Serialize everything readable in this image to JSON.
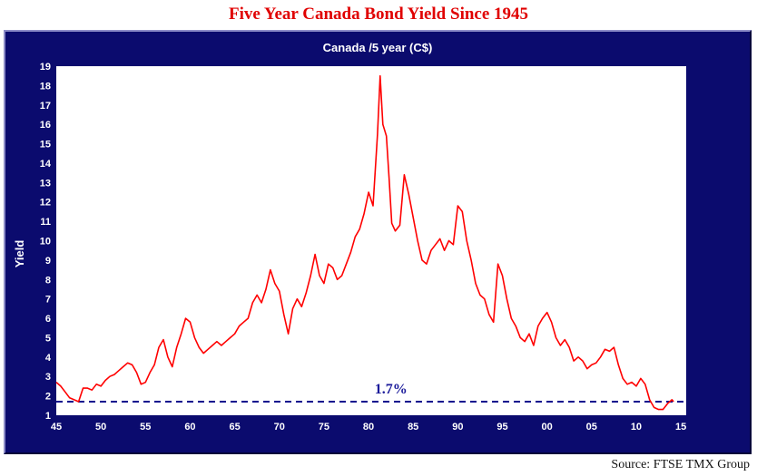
{
  "page": {
    "title": "Five Year Canada Bond Yield Since 1945",
    "source": "Source:  FTSE TMX Group"
  },
  "colors": {
    "frame_bg": "#0b0b6e",
    "plot_bg": "#ffffff",
    "series_line": "#ff0000",
    "reference_line": "#0b0b8e",
    "title_red": "#e00000"
  },
  "chart_data": {
    "type": "line",
    "title": "Canada /5 year (C$)",
    "xlabel": "",
    "ylabel": "Yield",
    "xlim": [
      1945,
      2015.6
    ],
    "ylim": [
      1,
      19
    ],
    "grid": false,
    "xticks": [
      1945,
      1950,
      1955,
      1960,
      1965,
      1970,
      1975,
      1980,
      1985,
      1990,
      1995,
      2000,
      2005,
      2010,
      2015
    ],
    "xtick_labels": [
      "45",
      "50",
      "55",
      "60",
      "65",
      "70",
      "75",
      "80",
      "85",
      "90",
      "95",
      "00",
      "05",
      "10",
      "15"
    ],
    "yticks": [
      1,
      2,
      3,
      4,
      5,
      6,
      7,
      8,
      9,
      10,
      11,
      12,
      13,
      14,
      15,
      16,
      17,
      18,
      19
    ],
    "series": [
      {
        "x": [
          1945.0,
          1945.5,
          1946.0,
          1946.5,
          1947.0,
          1947.5,
          1948.0,
          1948.5,
          1949.0,
          1949.5,
          1950.0,
          1950.5,
          1951.0,
          1951.5,
          1952.0,
          1952.5,
          1953.0,
          1953.5,
          1954.0,
          1954.5,
          1955.0,
          1955.5,
          1956.0,
          1956.5,
          1957.0,
          1957.5,
          1958.0,
          1958.5,
          1959.0,
          1959.5,
          1960.0,
          1960.5,
          1961.0,
          1961.5,
          1962.0,
          1962.5,
          1963.0,
          1963.5,
          1964.0,
          1964.5,
          1965.0,
          1965.5,
          1966.0,
          1966.5,
          1967.0,
          1967.5,
          1968.0,
          1968.5,
          1969.0,
          1969.5,
          1970.0,
          1970.5,
          1971.0,
          1971.5,
          1972.0,
          1972.5,
          1973.0,
          1973.5,
          1974.0,
          1974.5,
          1975.0,
          1975.5,
          1976.0,
          1976.5,
          1977.0,
          1977.5,
          1978.0,
          1978.5,
          1979.0,
          1979.5,
          1980.0,
          1980.5,
          1981.0,
          1981.3,
          1981.6,
          1982.0,
          1982.3,
          1982.6,
          1983.0,
          1983.5,
          1984.0,
          1984.5,
          1985.0,
          1985.5,
          1986.0,
          1986.5,
          1987.0,
          1987.5,
          1988.0,
          1988.5,
          1989.0,
          1989.5,
          1990.0,
          1990.5,
          1991.0,
          1991.5,
          1992.0,
          1992.5,
          1993.0,
          1993.5,
          1994.0,
          1994.5,
          1995.0,
          1995.5,
          1996.0,
          1996.5,
          1997.0,
          1997.5,
          1998.0,
          1998.5,
          1999.0,
          1999.5,
          2000.0,
          2000.5,
          2001.0,
          2001.5,
          2002.0,
          2002.5,
          2003.0,
          2003.5,
          2004.0,
          2004.5,
          2005.0,
          2005.5,
          2006.0,
          2006.5,
          2007.0,
          2007.5,
          2008.0,
          2008.5,
          2009.0,
          2009.5,
          2010.0,
          2010.5,
          2011.0,
          2011.5,
          2012.0,
          2012.5,
          2013.0,
          2013.5,
          2014.0,
          2014.2
        ],
        "values": [
          2.7,
          2.5,
          2.2,
          1.9,
          1.8,
          1.7,
          2.4,
          2.4,
          2.3,
          2.6,
          2.5,
          2.8,
          3.0,
          3.1,
          3.3,
          3.5,
          3.7,
          3.6,
          3.2,
          2.6,
          2.7,
          3.2,
          3.6,
          4.5,
          4.9,
          4.0,
          3.5,
          4.5,
          5.2,
          6.0,
          5.8,
          5.0,
          4.5,
          4.2,
          4.4,
          4.6,
          4.8,
          4.6,
          4.8,
          5.0,
          5.2,
          5.6,
          5.8,
          6.0,
          6.8,
          7.2,
          6.8,
          7.5,
          8.5,
          7.8,
          7.4,
          6.2,
          5.2,
          6.5,
          7.0,
          6.6,
          7.3,
          8.2,
          9.3,
          8.2,
          7.8,
          8.8,
          8.6,
          8.0,
          8.2,
          8.8,
          9.4,
          10.2,
          10.6,
          11.4,
          12.5,
          11.8,
          15.5,
          18.5,
          16.0,
          15.4,
          13.2,
          10.9,
          10.5,
          10.8,
          13.4,
          12.4,
          11.2,
          10.0,
          9.0,
          8.8,
          9.5,
          9.8,
          10.1,
          9.5,
          10.0,
          9.8,
          11.8,
          11.5,
          10.0,
          9.0,
          7.8,
          7.2,
          7.0,
          6.2,
          5.8,
          8.8,
          8.2,
          7.0,
          6.0,
          5.6,
          5.0,
          4.8,
          5.2,
          4.6,
          5.6,
          6.0,
          6.3,
          5.8,
          5.0,
          4.6,
          4.9,
          4.5,
          3.8,
          4.0,
          3.8,
          3.4,
          3.6,
          3.7,
          4.0,
          4.4,
          4.3,
          4.5,
          3.6,
          2.9,
          2.6,
          2.7,
          2.5,
          2.9,
          2.6,
          1.8,
          1.4,
          1.3,
          1.3,
          1.6,
          1.8,
          1.7
        ]
      }
    ],
    "annotations": [
      {
        "label": "1.7%",
        "y": 1.7,
        "x": 1981.5,
        "style": "dashed-horizontal"
      }
    ]
  }
}
